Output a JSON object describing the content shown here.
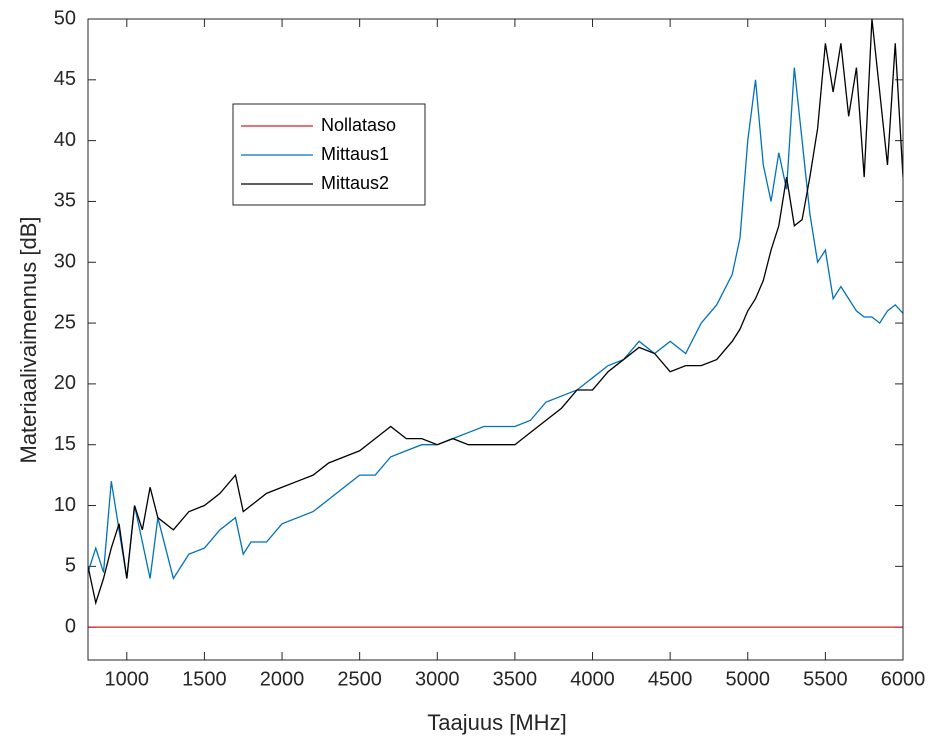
{
  "chart_data": {
    "type": "line",
    "xlabel": "Taajuus [MHz]",
    "ylabel": "Materiaalivaimennus [dB]",
    "x": [
      750,
      800,
      850,
      900,
      950,
      1000,
      1050,
      1100,
      1150,
      1200,
      1300,
      1400,
      1500,
      1600,
      1700,
      1750,
      1800,
      1900,
      2000,
      2100,
      2200,
      2300,
      2400,
      2500,
      2600,
      2700,
      2800,
      2900,
      3000,
      3100,
      3200,
      3300,
      3400,
      3500,
      3600,
      3700,
      3800,
      3900,
      4000,
      4100,
      4200,
      4300,
      4400,
      4500,
      4600,
      4700,
      4800,
      4900,
      4950,
      5000,
      5050,
      5100,
      5150,
      5200,
      5250,
      5300,
      5350,
      5400,
      5450,
      5500,
      5550,
      5600,
      5650,
      5700,
      5750,
      5800,
      5850,
      5900,
      5950,
      6000
    ],
    "series": [
      {
        "name": "Nollataso",
        "color": "#d62020",
        "values": [
          0,
          0,
          0,
          0,
          0,
          0,
          0,
          0,
          0,
          0,
          0,
          0,
          0,
          0,
          0,
          0,
          0,
          0,
          0,
          0,
          0,
          0,
          0,
          0,
          0,
          0,
          0,
          0,
          0,
          0,
          0,
          0,
          0,
          0,
          0,
          0,
          0,
          0,
          0,
          0,
          0,
          0,
          0,
          0,
          0,
          0,
          0,
          0,
          0,
          0,
          0,
          0,
          0,
          0,
          0,
          0,
          0,
          0,
          0,
          0,
          0,
          0,
          0,
          0,
          0,
          0,
          0,
          0,
          0,
          0
        ]
      },
      {
        "name": "Mittaus1",
        "color": "#0072bd",
        "values": [
          4.5,
          6.5,
          4.5,
          12,
          8,
          4,
          10,
          7,
          4,
          9,
          4,
          6,
          6.5,
          8,
          9,
          6,
          7,
          7,
          8.5,
          9,
          9.5,
          10.5,
          11.5,
          12.5,
          12.5,
          14,
          14.5,
          15,
          15,
          15.5,
          16,
          16.5,
          16.5,
          16.5,
          17,
          18.5,
          19,
          19.5,
          20.5,
          21.5,
          22,
          23.5,
          22.5,
          23.5,
          22.5,
          25,
          26.5,
          29,
          32,
          40,
          45,
          38,
          35,
          39,
          36,
          46,
          40,
          34,
          30,
          31,
          27,
          28,
          27,
          26,
          25.5,
          25.5,
          25,
          26,
          26.5,
          25.8
        ]
      },
      {
        "name": "Mittaus2",
        "color": "#000000",
        "values": [
          5,
          2,
          4,
          6.5,
          8.5,
          4,
          10,
          8,
          11.5,
          9,
          8,
          9.5,
          10,
          11,
          12.5,
          9.5,
          10,
          11,
          11.5,
          12,
          12.5,
          13.5,
          14,
          14.5,
          15.5,
          16.5,
          15.5,
          15.5,
          15,
          15.5,
          15,
          15,
          15,
          15,
          16,
          17,
          18,
          19.5,
          19.5,
          21,
          22,
          23,
          22.5,
          21,
          21.5,
          21.5,
          22,
          23.5,
          24.5,
          26,
          27,
          28.5,
          31,
          33,
          37,
          33,
          33.5,
          37,
          41,
          48,
          44,
          48,
          42,
          46,
          37,
          50,
          44,
          38,
          48,
          37
        ]
      }
    ],
    "xlim": [
      750,
      6000
    ],
    "ylim": [
      -2.7,
      50
    ],
    "xticks": [
      1000,
      1500,
      2000,
      2500,
      3000,
      3500,
      4000,
      4500,
      5000,
      5500,
      6000
    ],
    "yticks": [
      0,
      5,
      10,
      15,
      20,
      25,
      30,
      35,
      40,
      45,
      50
    ]
  }
}
